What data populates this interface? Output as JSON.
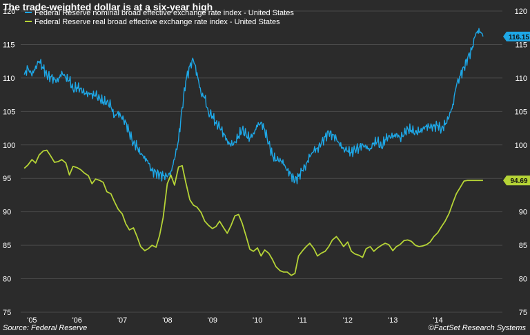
{
  "header": {
    "title": "The trade-weighted dollar is at a six-year high"
  },
  "footer": {
    "source": "Source: Federal Reserve",
    "credit": "©FactSet Research Systems"
  },
  "colors": {
    "background": "#2b2b2b",
    "grid": "#4a4a4a",
    "nominal": "#1ea7e6",
    "real": "#b5d336"
  },
  "chart_data": {
    "type": "line",
    "title": "The trade-weighted dollar is at a six-year high",
    "x_tick_labels": [
      "'05",
      "'06",
      "'07",
      "'08",
      "'09",
      "'10",
      "'11",
      "'12",
      "'13",
      "'14"
    ],
    "x_tick_positions": [
      2005,
      2006,
      2007,
      2008,
      2009,
      2010,
      2011,
      2012,
      2013,
      2014
    ],
    "xlim": [
      2004.92,
      2015.6
    ],
    "ylim": [
      75,
      120
    ],
    "y_ticks": [
      75,
      80,
      85,
      90,
      95,
      100,
      105,
      110,
      115,
      120
    ],
    "y_axis_sides": [
      "left",
      "right"
    ],
    "grid": "horizontal",
    "legend_placement": "top-left",
    "series": [
      {
        "name": "Federal Reserve nominal broad effective exchange rate index - United States",
        "color": "#1ea7e6",
        "last_value": "116.15",
        "x": [
          2005.0,
          2005.08,
          2005.17,
          2005.25,
          2005.33,
          2005.42,
          2005.5,
          2005.58,
          2005.67,
          2005.75,
          2005.83,
          2005.92,
          2006.0,
          2006.08,
          2006.17,
          2006.25,
          2006.33,
          2006.42,
          2006.5,
          2006.58,
          2006.67,
          2006.75,
          2006.83,
          2006.92,
          2007.0,
          2007.08,
          2007.17,
          2007.25,
          2007.33,
          2007.42,
          2007.5,
          2007.58,
          2007.67,
          2007.75,
          2007.83,
          2007.92,
          2008.0,
          2008.08,
          2008.17,
          2008.25,
          2008.33,
          2008.42,
          2008.5,
          2008.58,
          2008.67,
          2008.75,
          2008.83,
          2008.92,
          2009.0,
          2009.08,
          2009.17,
          2009.25,
          2009.33,
          2009.42,
          2009.5,
          2009.58,
          2009.67,
          2009.75,
          2009.83,
          2009.92,
          2010.0,
          2010.08,
          2010.17,
          2010.25,
          2010.33,
          2010.42,
          2010.5,
          2010.58,
          2010.67,
          2010.75,
          2010.83,
          2010.92,
          2011.0,
          2011.08,
          2011.17,
          2011.25,
          2011.33,
          2011.42,
          2011.5,
          2011.58,
          2011.67,
          2011.75,
          2011.83,
          2011.92,
          2012.0,
          2012.08,
          2012.17,
          2012.25,
          2012.33,
          2012.42,
          2012.5,
          2012.58,
          2012.67,
          2012.75,
          2012.83,
          2012.92,
          2013.0,
          2013.08,
          2013.17,
          2013.25,
          2013.33,
          2013.42,
          2013.5,
          2013.58,
          2013.67,
          2013.75,
          2013.83,
          2013.92,
          2014.0,
          2014.08,
          2014.17,
          2014.25,
          2014.33,
          2014.42,
          2014.5,
          2014.58,
          2014.67,
          2014.75,
          2014.83,
          2014.92,
          2015.0,
          2015.08,
          2015.17
        ],
        "y": [
          110.5,
          111.5,
          110.3,
          111.8,
          112.5,
          111.4,
          110.4,
          110.2,
          109.8,
          109.4,
          111.0,
          110.0,
          109.6,
          108.3,
          108.6,
          108.5,
          107.5,
          107.8,
          107.6,
          107.3,
          107.0,
          106.4,
          106.5,
          105.7,
          104.2,
          105.0,
          103.8,
          103.4,
          101.8,
          100.3,
          99.7,
          98.6,
          98.3,
          97.2,
          96.1,
          95.9,
          95.6,
          95.4,
          95.2,
          96.1,
          97.8,
          100.7,
          105.6,
          109.5,
          111.8,
          112.6,
          110.8,
          107.6,
          107.0,
          104.9,
          104.3,
          103.2,
          102.6,
          101.8,
          100.6,
          99.8,
          100.5,
          101.3,
          102.3,
          101.4,
          101.0,
          101.8,
          102.7,
          103.4,
          102.3,
          100.2,
          98.4,
          97.7,
          98.0,
          97.0,
          96.2,
          95.6,
          94.6,
          95.3,
          96.2,
          97.2,
          98.2,
          99.1,
          99.6,
          100.1,
          101.2,
          101.8,
          101.6,
          100.9,
          99.8,
          99.6,
          99.1,
          98.8,
          99.3,
          99.6,
          100.1,
          99.4,
          99.5,
          100.3,
          100.5,
          99.6,
          100.8,
          101.4,
          101.0,
          101.7,
          101.1,
          101.5,
          102.4,
          102.2,
          102.0,
          101.8,
          102.3,
          103.0,
          102.5,
          102.8,
          102.9,
          102.4,
          103.0,
          104.2,
          106.1,
          108.8,
          110.4,
          111.6,
          113.0,
          114.2,
          116.3,
          117.4,
          116.2
        ]
      },
      {
        "name": "Federal Reserve real broad effective exchange rate index - United States",
        "color": "#b5d336",
        "last_value": "94.69",
        "x": [
          2005.0,
          2005.08,
          2005.17,
          2005.25,
          2005.33,
          2005.42,
          2005.5,
          2005.58,
          2005.67,
          2005.75,
          2005.83,
          2005.92,
          2006.0,
          2006.08,
          2006.17,
          2006.25,
          2006.33,
          2006.42,
          2006.5,
          2006.58,
          2006.67,
          2006.75,
          2006.83,
          2006.92,
          2007.0,
          2007.08,
          2007.17,
          2007.25,
          2007.33,
          2007.42,
          2007.5,
          2007.58,
          2007.67,
          2007.75,
          2007.83,
          2007.92,
          2008.0,
          2008.08,
          2008.17,
          2008.25,
          2008.33,
          2008.42,
          2008.5,
          2008.58,
          2008.67,
          2008.75,
          2008.83,
          2008.92,
          2009.0,
          2009.08,
          2009.17,
          2009.25,
          2009.33,
          2009.42,
          2009.5,
          2009.58,
          2009.67,
          2009.75,
          2009.83,
          2009.92,
          2010.0,
          2010.08,
          2010.17,
          2010.25,
          2010.33,
          2010.42,
          2010.5,
          2010.58,
          2010.67,
          2010.75,
          2010.83,
          2010.92,
          2011.0,
          2011.08,
          2011.17,
          2011.25,
          2011.33,
          2011.42,
          2011.5,
          2011.58,
          2011.67,
          2011.75,
          2011.83,
          2011.92,
          2012.0,
          2012.08,
          2012.17,
          2012.25,
          2012.33,
          2012.42,
          2012.5,
          2012.58,
          2012.67,
          2012.75,
          2012.83,
          2012.92,
          2013.0,
          2013.08,
          2013.17,
          2013.25,
          2013.33,
          2013.42,
          2013.5,
          2013.58,
          2013.67,
          2013.75,
          2013.83,
          2013.92,
          2014.0,
          2014.08,
          2014.17,
          2014.25,
          2014.33,
          2014.42,
          2014.5,
          2014.58,
          2014.67,
          2014.75,
          2014.83,
          2014.92,
          2015.0,
          2015.08,
          2015.17
        ],
        "y": [
          96.5,
          97.0,
          97.8,
          97.3,
          98.5,
          99.1,
          99.2,
          98.4,
          97.4,
          97.5,
          97.8,
          97.3,
          95.5,
          96.8,
          96.6,
          96.3,
          95.8,
          95.4,
          94.2,
          94.9,
          94.7,
          94.4,
          93.0,
          92.7,
          91.5,
          90.4,
          89.7,
          88.2,
          87.3,
          87.6,
          86.3,
          84.8,
          84.2,
          84.5,
          85.0,
          84.7,
          86.5,
          89.2,
          94.2,
          95.5,
          94.0,
          96.7,
          96.9,
          94.4,
          91.8,
          91.0,
          90.7,
          89.9,
          88.6,
          88.0,
          87.5,
          87.8,
          88.6,
          87.6,
          86.8,
          87.9,
          89.4,
          89.6,
          88.3,
          86.3,
          84.4,
          84.1,
          84.6,
          83.4,
          84.3,
          83.8,
          82.9,
          81.8,
          81.2,
          81.0,
          81.0,
          80.5,
          80.8,
          83.4,
          84.2,
          84.8,
          85.3,
          84.5,
          83.4,
          83.8,
          84.1,
          84.8,
          85.8,
          86.3,
          85.6,
          84.8,
          85.5,
          84.1,
          83.7,
          83.5,
          83.2,
          84.5,
          84.8,
          84.1,
          84.6,
          85.0,
          85.3,
          85.1,
          84.2,
          84.8,
          85.1,
          85.7,
          85.8,
          85.6,
          85.0,
          84.8,
          84.9,
          85.1,
          85.5,
          86.3,
          86.9,
          87.8,
          88.6,
          89.8,
          91.3,
          92.7,
          93.7,
          94.6,
          94.7,
          94.69,
          94.69,
          94.69,
          94.69
        ]
      }
    ]
  }
}
